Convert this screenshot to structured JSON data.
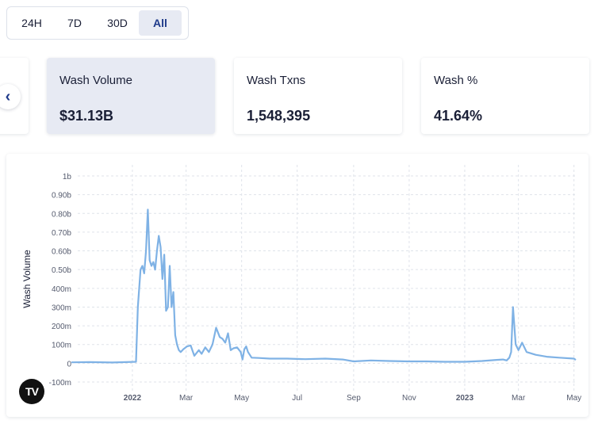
{
  "time_ranges": {
    "options": [
      "24H",
      "7D",
      "30D",
      "All"
    ],
    "selected": "All"
  },
  "stats": [
    {
      "label": "Wash Volume",
      "value": "$31.13B"
    },
    {
      "label": "Wash Txns",
      "value": "1,548,395"
    },
    {
      "label": "Wash %",
      "value": "41.64%"
    }
  ],
  "colors": {
    "accent": "#1f3a8a",
    "selected_bg": "#e7eaf3",
    "line": "#7fb2e5"
  },
  "nav_icon": "chevron-left-icon",
  "logo_text": "TV",
  "chart_data": {
    "type": "line",
    "ylabel": "Wash Volume",
    "y_tick_labels": [
      "1b",
      "0.90b",
      "0.80b",
      "0.70b",
      "0.60b",
      "0.50b",
      "400m",
      "300m",
      "200m",
      "100m",
      "0",
      "-100m"
    ],
    "y_tick_values": [
      1000,
      900,
      800,
      700,
      600,
      500,
      400,
      300,
      200,
      100,
      0,
      -100
    ],
    "ylim": [
      -100,
      1000
    ],
    "x_tick_labels": [
      "2022",
      "Mar",
      "May",
      "Jul",
      "Sep",
      "Nov",
      "2023",
      "Mar",
      "May"
    ],
    "x_tick_dates": [
      "2022-01-01",
      "2022-03-01",
      "2022-05-01",
      "2022-07-01",
      "2022-09-01",
      "2022-11-01",
      "2023-01-01",
      "2023-03-01",
      "2023-05-01"
    ],
    "xlim": [
      "2021-10-26",
      "2023-05-03"
    ],
    "grid": true,
    "series": [
      {
        "unit": "millions USD",
        "x": [
          "2021-10-26",
          "2021-11-15",
          "2021-12-10",
          "2022-01-05",
          "2022-01-07",
          "2022-01-10",
          "2022-01-12",
          "2022-01-14",
          "2022-01-16",
          "2022-01-18",
          "2022-01-20",
          "2022-01-22",
          "2022-01-24",
          "2022-01-26",
          "2022-01-28",
          "2022-01-30",
          "2022-02-01",
          "2022-02-03",
          "2022-02-05",
          "2022-02-07",
          "2022-02-09",
          "2022-02-11",
          "2022-02-13",
          "2022-02-15",
          "2022-02-17",
          "2022-02-19",
          "2022-02-21",
          "2022-02-23",
          "2022-02-26",
          "2022-03-02",
          "2022-03-06",
          "2022-03-10",
          "2022-03-15",
          "2022-03-18",
          "2022-03-22",
          "2022-03-26",
          "2022-03-30",
          "2022-04-03",
          "2022-04-07",
          "2022-04-10",
          "2022-04-13",
          "2022-04-16",
          "2022-04-19",
          "2022-04-22",
          "2022-04-26",
          "2022-04-30",
          "2022-05-02",
          "2022-05-04",
          "2022-05-06",
          "2022-05-08",
          "2022-05-12",
          "2022-05-20",
          "2022-06-01",
          "2022-06-20",
          "2022-07-10",
          "2022-08-01",
          "2022-08-20",
          "2022-09-01",
          "2022-09-20",
          "2022-10-10",
          "2022-11-01",
          "2022-11-20",
          "2022-12-10",
          "2023-01-01",
          "2023-01-20",
          "2023-02-05",
          "2023-02-12",
          "2023-02-16",
          "2023-02-19",
          "2023-02-21",
          "2023-02-23",
          "2023-02-26",
          "2023-03-01",
          "2023-03-05",
          "2023-03-10",
          "2023-03-20",
          "2023-04-01",
          "2023-04-15",
          "2023-05-01",
          "2023-05-03"
        ],
        "y": [
          5,
          6,
          4,
          8,
          300,
          500,
          520,
          480,
          600,
          820,
          550,
          520,
          540,
          500,
          600,
          680,
          620,
          450,
          580,
          280,
          300,
          520,
          300,
          380,
          150,
          100,
          70,
          60,
          75,
          90,
          95,
          40,
          70,
          50,
          85,
          60,
          100,
          190,
          140,
          130,
          110,
          160,
          70,
          80,
          85,
          60,
          20,
          75,
          90,
          60,
          30,
          28,
          25,
          25,
          22,
          25,
          20,
          10,
          15,
          12,
          10,
          10,
          8,
          8,
          12,
          18,
          20,
          15,
          30,
          60,
          300,
          100,
          70,
          110,
          60,
          45,
          35,
          30,
          25,
          18
        ]
      }
    ]
  }
}
